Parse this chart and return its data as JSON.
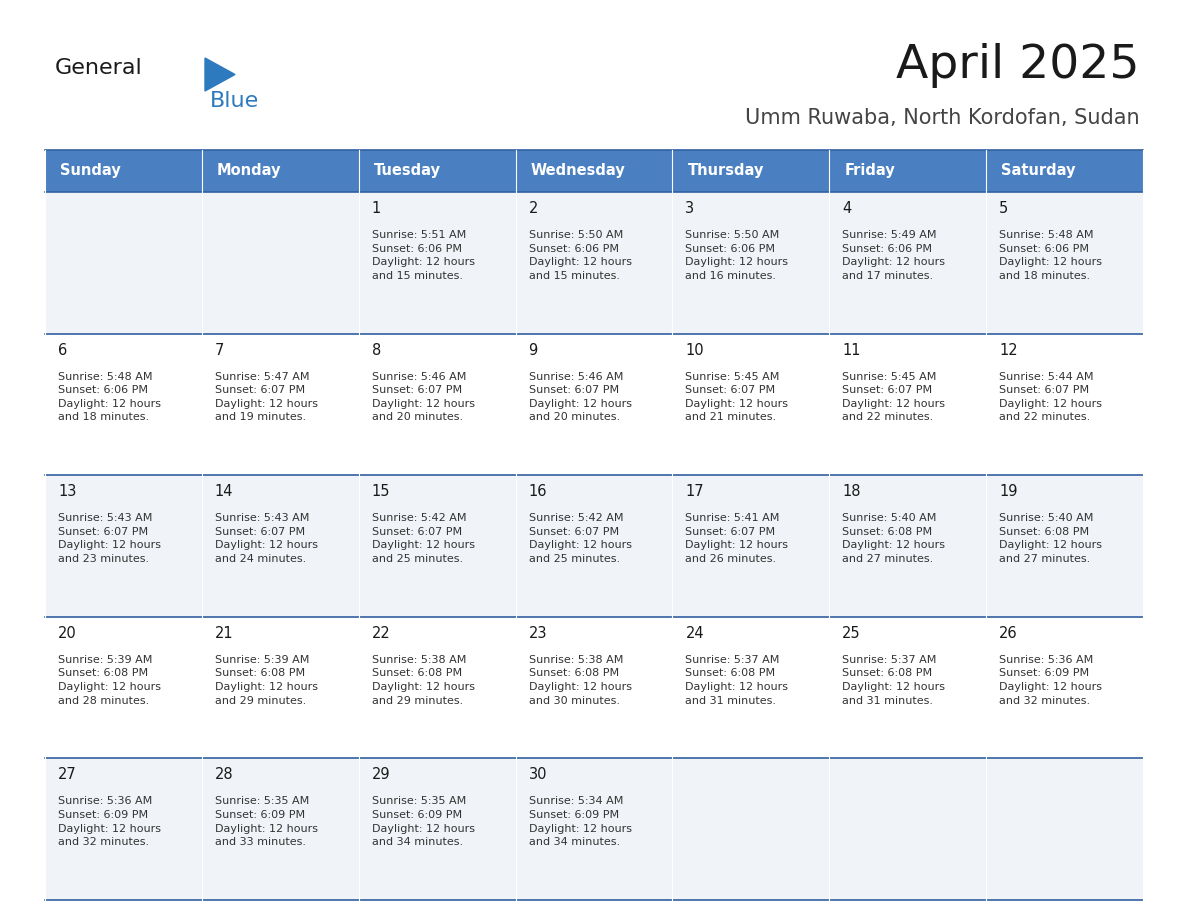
{
  "title": "April 2025",
  "subtitle": "Umm Ruwaba, North Kordofan, Sudan",
  "days_of_week": [
    "Sunday",
    "Monday",
    "Tuesday",
    "Wednesday",
    "Thursday",
    "Friday",
    "Saturday"
  ],
  "header_bg": "#4A7FC1",
  "header_text_color": "#FFFFFF",
  "cell_bg_odd": "#F0F4F8",
  "cell_bg_even": "#FFFFFF",
  "cell_border_color": "#3060A0",
  "title_color": "#1a1a1a",
  "subtitle_color": "#444444",
  "day_num_color": "#1a1a1a",
  "cell_text_color": "#333333",
  "logo_general_color": "#1a1a1a",
  "logo_blue_color": "#2E7ABF",
  "weeks": [
    [
      {
        "day": null,
        "sunrise": null,
        "sunset": null,
        "daylight": ""
      },
      {
        "day": null,
        "sunrise": null,
        "sunset": null,
        "daylight": ""
      },
      {
        "day": 1,
        "sunrise": "5:51 AM",
        "sunset": "6:06 PM",
        "daylight": "and 15 minutes."
      },
      {
        "day": 2,
        "sunrise": "5:50 AM",
        "sunset": "6:06 PM",
        "daylight": "and 15 minutes."
      },
      {
        "day": 3,
        "sunrise": "5:50 AM",
        "sunset": "6:06 PM",
        "daylight": "and 16 minutes."
      },
      {
        "day": 4,
        "sunrise": "5:49 AM",
        "sunset": "6:06 PM",
        "daylight": "and 17 minutes."
      },
      {
        "day": 5,
        "sunrise": "5:48 AM",
        "sunset": "6:06 PM",
        "daylight": "and 18 minutes."
      }
    ],
    [
      {
        "day": 6,
        "sunrise": "5:48 AM",
        "sunset": "6:06 PM",
        "daylight": "and 18 minutes."
      },
      {
        "day": 7,
        "sunrise": "5:47 AM",
        "sunset": "6:07 PM",
        "daylight": "and 19 minutes."
      },
      {
        "day": 8,
        "sunrise": "5:46 AM",
        "sunset": "6:07 PM",
        "daylight": "and 20 minutes."
      },
      {
        "day": 9,
        "sunrise": "5:46 AM",
        "sunset": "6:07 PM",
        "daylight": "and 20 minutes."
      },
      {
        "day": 10,
        "sunrise": "5:45 AM",
        "sunset": "6:07 PM",
        "daylight": "and 21 minutes."
      },
      {
        "day": 11,
        "sunrise": "5:45 AM",
        "sunset": "6:07 PM",
        "daylight": "and 22 minutes."
      },
      {
        "day": 12,
        "sunrise": "5:44 AM",
        "sunset": "6:07 PM",
        "daylight": "and 22 minutes."
      }
    ],
    [
      {
        "day": 13,
        "sunrise": "5:43 AM",
        "sunset": "6:07 PM",
        "daylight": "and 23 minutes."
      },
      {
        "day": 14,
        "sunrise": "5:43 AM",
        "sunset": "6:07 PM",
        "daylight": "and 24 minutes."
      },
      {
        "day": 15,
        "sunrise": "5:42 AM",
        "sunset": "6:07 PM",
        "daylight": "and 25 minutes."
      },
      {
        "day": 16,
        "sunrise": "5:42 AM",
        "sunset": "6:07 PM",
        "daylight": "and 25 minutes."
      },
      {
        "day": 17,
        "sunrise": "5:41 AM",
        "sunset": "6:07 PM",
        "daylight": "and 26 minutes."
      },
      {
        "day": 18,
        "sunrise": "5:40 AM",
        "sunset": "6:08 PM",
        "daylight": "and 27 minutes."
      },
      {
        "day": 19,
        "sunrise": "5:40 AM",
        "sunset": "6:08 PM",
        "daylight": "and 27 minutes."
      }
    ],
    [
      {
        "day": 20,
        "sunrise": "5:39 AM",
        "sunset": "6:08 PM",
        "daylight": "and 28 minutes."
      },
      {
        "day": 21,
        "sunrise": "5:39 AM",
        "sunset": "6:08 PM",
        "daylight": "and 29 minutes."
      },
      {
        "day": 22,
        "sunrise": "5:38 AM",
        "sunset": "6:08 PM",
        "daylight": "and 29 minutes."
      },
      {
        "day": 23,
        "sunrise": "5:38 AM",
        "sunset": "6:08 PM",
        "daylight": "and 30 minutes."
      },
      {
        "day": 24,
        "sunrise": "5:37 AM",
        "sunset": "6:08 PM",
        "daylight": "and 31 minutes."
      },
      {
        "day": 25,
        "sunrise": "5:37 AM",
        "sunset": "6:08 PM",
        "daylight": "and 31 minutes."
      },
      {
        "day": 26,
        "sunrise": "5:36 AM",
        "sunset": "6:09 PM",
        "daylight": "and 32 minutes."
      }
    ],
    [
      {
        "day": 27,
        "sunrise": "5:36 AM",
        "sunset": "6:09 PM",
        "daylight": "and 32 minutes."
      },
      {
        "day": 28,
        "sunrise": "5:35 AM",
        "sunset": "6:09 PM",
        "daylight": "and 33 minutes."
      },
      {
        "day": 29,
        "sunrise": "5:35 AM",
        "sunset": "6:09 PM",
        "daylight": "and 34 minutes."
      },
      {
        "day": 30,
        "sunrise": "5:34 AM",
        "sunset": "6:09 PM",
        "daylight": "and 34 minutes."
      },
      {
        "day": null,
        "sunrise": null,
        "sunset": null,
        "daylight": ""
      },
      {
        "day": null,
        "sunrise": null,
        "sunset": null,
        "daylight": ""
      },
      {
        "day": null,
        "sunrise": null,
        "sunset": null,
        "daylight": ""
      }
    ]
  ]
}
